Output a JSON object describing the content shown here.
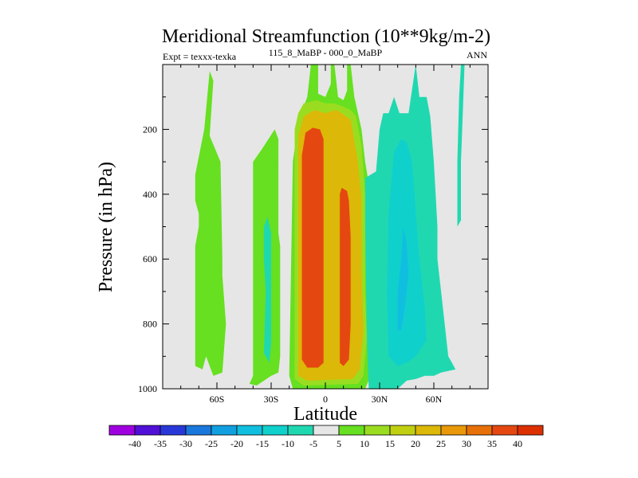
{
  "chart_data": {
    "type": "heatmap",
    "title": "Meridional Streamfunction (10**9kg/m-2)",
    "left_string": "Expt = texxx-texka",
    "center_string": "115_8_MaBP - 000_0_MaBP",
    "right_string": "ANN",
    "xlabel": "Latitude",
    "ylabel": "Pressure (in hPa)",
    "xlim": [
      -90,
      90
    ],
    "ylim": [
      0,
      1000
    ],
    "y_reversed": true,
    "x_ticks": [
      {
        "value": -60,
        "label": "60S"
      },
      {
        "value": -30,
        "label": "30S"
      },
      {
        "value": 0,
        "label": "0"
      },
      {
        "value": 30,
        "label": "30N"
      },
      {
        "value": 60,
        "label": "60N"
      }
    ],
    "y_ticks": [
      {
        "value": 200,
        "label": "200"
      },
      {
        "value": 400,
        "label": "400"
      },
      {
        "value": 600,
        "label": "600"
      },
      {
        "value": 800,
        "label": "800"
      },
      {
        "value": 1000,
        "label": "1000"
      }
    ],
    "colorbar": {
      "labels": [
        "-40",
        "-35",
        "-30",
        "-25",
        "-20",
        "-15",
        "-10",
        "-5",
        "5",
        "10",
        "15",
        "20",
        "25",
        "30",
        "35",
        "40"
      ],
      "colors": [
        "#a000e0",
        "#5010d8",
        "#2838d8",
        "#1a78dc",
        "#10a0e0",
        "#10bfe0",
        "#10d0cc",
        "#20d8b0",
        "#e6e6e6",
        "#66e020",
        "#9add20",
        "#c0d010",
        "#dcb808",
        "#e89808",
        "#e87008",
        "#e44810",
        "#dc3000"
      ]
    },
    "regions": [
      {
        "name": "sh-green-band",
        "value": 7.5,
        "points": [
          [
            -72,
            1000
          ],
          [
            -72,
            880
          ],
          [
            -72,
            560
          ],
          [
            -70,
            500
          ],
          [
            -70,
            460
          ],
          [
            -72,
            420
          ],
          [
            -72,
            340
          ],
          [
            -67,
            200
          ],
          [
            -64,
            20
          ],
          [
            -62,
            50
          ],
          [
            -64,
            220
          ],
          [
            -58,
            300
          ],
          [
            -57,
            600
          ],
          [
            -57,
            650
          ],
          [
            -55,
            800
          ],
          [
            -57,
            950
          ],
          [
            -62,
            960
          ],
          [
            -66,
            900
          ],
          [
            -68,
            940
          ],
          [
            -72,
            930
          ]
        ]
      },
      {
        "name": "sh-mid-green",
        "value": 7.5,
        "points": [
          [
            -42,
            985
          ],
          [
            -40,
            960
          ],
          [
            -40,
            300
          ],
          [
            -35,
            260
          ],
          [
            -28,
            200
          ],
          [
            -26,
            230
          ],
          [
            -26,
            520
          ],
          [
            -25,
            560
          ],
          [
            -25,
            900
          ],
          [
            -26,
            950
          ],
          [
            -30,
            960
          ],
          [
            -38,
            990
          ]
        ]
      },
      {
        "name": "sh-mid-cyan",
        "value": -7.5,
        "points": [
          [
            -34,
            890
          ],
          [
            -33,
            700
          ],
          [
            -34,
            600
          ],
          [
            -34,
            500
          ],
          [
            -32,
            470
          ],
          [
            -30,
            520
          ],
          [
            -30,
            860
          ],
          [
            -31,
            920
          ]
        ]
      },
      {
        "name": "tropics-green",
        "value": 7.5,
        "points": [
          [
            -20,
            960
          ],
          [
            -18,
            300
          ],
          [
            -15,
            180
          ],
          [
            -12,
            130
          ],
          [
            -10,
            100
          ],
          [
            -8,
            0
          ],
          [
            -4,
            0
          ],
          [
            -4,
            90
          ],
          [
            0,
            100
          ],
          [
            3,
            60
          ],
          [
            3,
            0
          ],
          [
            5,
            0
          ],
          [
            7,
            100
          ],
          [
            10,
            110
          ],
          [
            12,
            80
          ],
          [
            12,
            0
          ],
          [
            14,
            0
          ],
          [
            16,
            100
          ],
          [
            18,
            150
          ],
          [
            20,
            200
          ],
          [
            22,
            300
          ],
          [
            25,
            400
          ],
          [
            25,
            700
          ],
          [
            26,
            850
          ],
          [
            25,
            960
          ],
          [
            22,
            1000
          ],
          [
            -18,
            1000
          ]
        ]
      },
      {
        "name": "tropics-yellow",
        "value": 12.5,
        "points": [
          [
            -17,
            950
          ],
          [
            -17,
            200
          ],
          [
            -15,
            150
          ],
          [
            -12,
            120
          ],
          [
            -5,
            110
          ],
          [
            0,
            120
          ],
          [
            5,
            120
          ],
          [
            10,
            130
          ],
          [
            14,
            140
          ],
          [
            17,
            160
          ],
          [
            20,
            250
          ],
          [
            22,
            400
          ],
          [
            22,
            700
          ],
          [
            23,
            850
          ],
          [
            21,
            960
          ],
          [
            18,
            985
          ],
          [
            -12,
            990
          ],
          [
            -17,
            970
          ]
        ]
      },
      {
        "name": "tropics-orange",
        "value": 22.5,
        "points": [
          [
            -15,
            930
          ],
          [
            -15,
            220
          ],
          [
            -12,
            160
          ],
          [
            -6,
            140
          ],
          [
            0,
            150
          ],
          [
            6,
            140
          ],
          [
            9,
            150
          ],
          [
            14,
            170
          ],
          [
            18,
            300
          ],
          [
            20,
            420
          ],
          [
            20,
            640
          ],
          [
            21,
            820
          ],
          [
            19,
            940
          ],
          [
            15,
            970
          ],
          [
            -10,
            975
          ],
          [
            -15,
            960
          ]
        ]
      },
      {
        "name": "sh-hadley-core",
        "value": 37.5,
        "points": [
          [
            -13,
            910
          ],
          [
            -13,
            280
          ],
          [
            -11,
            210
          ],
          [
            -7,
            195
          ],
          [
            -3,
            200
          ],
          [
            -1,
            230
          ],
          [
            -1,
            920
          ],
          [
            -4,
            935
          ],
          [
            -10,
            935
          ]
        ]
      },
      {
        "name": "nh-hadley-core",
        "value": 37.5,
        "points": [
          [
            8,
            920
          ],
          [
            8,
            400
          ],
          [
            9,
            380
          ],
          [
            12,
            390
          ],
          [
            13,
            420
          ],
          [
            14,
            530
          ],
          [
            14,
            800
          ],
          [
            13,
            910
          ],
          [
            10,
            930
          ]
        ]
      },
      {
        "name": "nh-cyan-band",
        "value": -7.5,
        "points": [
          [
            24,
            1000
          ],
          [
            23,
            850
          ],
          [
            22,
            500
          ],
          [
            22,
            350
          ],
          [
            28,
            330
          ],
          [
            30,
            200
          ],
          [
            32,
            150
          ],
          [
            35,
            150
          ],
          [
            38,
            100
          ],
          [
            41,
            150
          ],
          [
            46,
            150
          ],
          [
            50,
            0
          ],
          [
            52,
            100
          ],
          [
            56,
            100
          ],
          [
            58,
            160
          ],
          [
            60,
            300
          ],
          [
            62,
            500
          ],
          [
            62,
            600
          ],
          [
            64,
            700
          ],
          [
            66,
            800
          ],
          [
            68,
            900
          ],
          [
            70,
            920
          ],
          [
            72,
            940
          ],
          [
            64,
            950
          ],
          [
            60,
            960
          ],
          [
            55,
            960
          ],
          [
            50,
            970
          ],
          [
            45,
            975
          ],
          [
            40,
            1000
          ]
        ]
      },
      {
        "name": "nh-blue-band",
        "value": -12.5,
        "points": [
          [
            35,
            900
          ],
          [
            34,
            700
          ],
          [
            35,
            450
          ],
          [
            38,
            270
          ],
          [
            42,
            230
          ],
          [
            45,
            240
          ],
          [
            48,
            300
          ],
          [
            50,
            450
          ],
          [
            52,
            600
          ],
          [
            55,
            750
          ],
          [
            56,
            850
          ],
          [
            50,
            900
          ],
          [
            45,
            920
          ],
          [
            40,
            930
          ]
        ]
      },
      {
        "name": "nh-blue-core",
        "value": -17.5,
        "points": [
          [
            40,
            820
          ],
          [
            40,
            700
          ],
          [
            42,
            600
          ],
          [
            43,
            500
          ],
          [
            45,
            550
          ],
          [
            46,
            650
          ],
          [
            44,
            750
          ],
          [
            42,
            820
          ]
        ]
      },
      {
        "name": "nh-upper-cyan",
        "value": -7.5,
        "points": [
          [
            73,
            500
          ],
          [
            73,
            300
          ],
          [
            74,
            100
          ],
          [
            75,
            0
          ],
          [
            77,
            0
          ],
          [
            76,
            150
          ],
          [
            75,
            300
          ],
          [
            75,
            480
          ]
        ]
      }
    ]
  }
}
